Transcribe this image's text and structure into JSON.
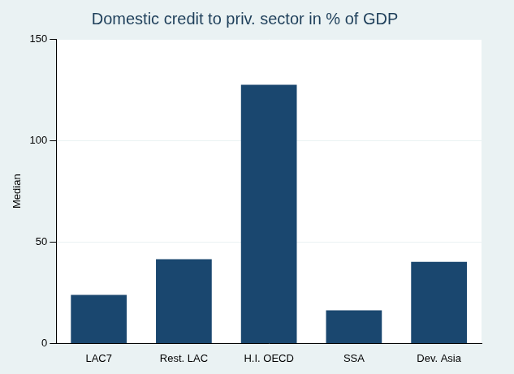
{
  "chart_data": {
    "type": "bar",
    "title": "Domestic credit to priv. sector in % of GDP",
    "y_label": "Median",
    "categories": [
      "LAC7",
      "Rest. LAC",
      "H.I. OECD",
      "SSA",
      "Dev. Asia"
    ],
    "values": [
      23.9,
      41.5,
      127.4,
      16.3,
      40.2
    ],
    "color": "#1a476f",
    "ylim": [
      0,
      150
    ],
    "yticks": [
      0,
      50,
      100,
      150
    ],
    "grid": true
  }
}
